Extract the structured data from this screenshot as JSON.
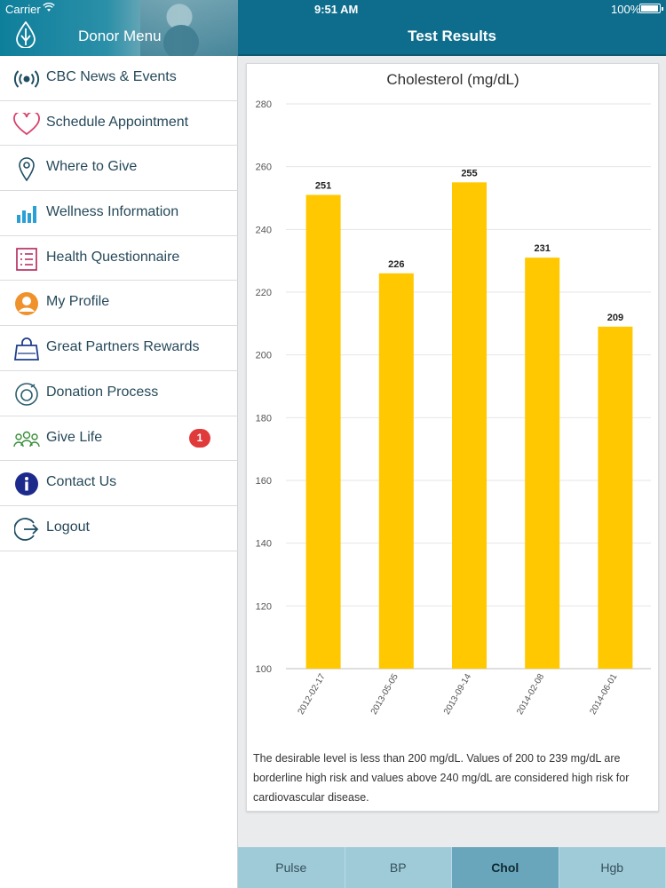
{
  "status_bar": {
    "carrier": "Carrier",
    "time": "9:51 AM",
    "battery": "100%"
  },
  "drawer": {
    "title": "Donor Menu",
    "items": [
      {
        "label": "CBC News & Events",
        "icon": "broadcast-icon",
        "color": "#1f4e63"
      },
      {
        "label": "Schedule Appointment",
        "icon": "heart-outline-icon",
        "color": "#d6426a"
      },
      {
        "label": "Where to Give",
        "icon": "map-pin-icon",
        "color": "#1f4e63"
      },
      {
        "label": "Wellness Information",
        "icon": "bar-chart-icon",
        "color": "#2a9fd6"
      },
      {
        "label": "Health Questionnaire",
        "icon": "checklist-icon",
        "color": "#b3245a"
      },
      {
        "label": "My Profile",
        "icon": "profile-icon",
        "color": "#f0922b"
      },
      {
        "label": "Great Partners Rewards",
        "icon": "shopping-bag-icon",
        "color": "#1f3f8a"
      },
      {
        "label": "Donation Process",
        "icon": "donation-process-icon",
        "color": "#2e5e6e"
      },
      {
        "label": "Give Life",
        "icon": "people-group-icon",
        "color": "#3a8f3a",
        "badge": "1"
      },
      {
        "label": "Contact Us",
        "icon": "info-icon",
        "color": "#1c2a8c"
      },
      {
        "label": "Logout",
        "icon": "logout-icon",
        "color": "#1f4e63"
      }
    ]
  },
  "main": {
    "title": "Test Results",
    "note": "The desirable level is less than 200 mg/dL. Values of 200 to 239 mg/dL are borderline high risk and values above 240 mg/dL are considered high risk for cardiovascular disease.",
    "tabs": [
      {
        "label": "Pulse",
        "active": false
      },
      {
        "label": "BP",
        "active": false
      },
      {
        "label": "Chol",
        "active": true
      },
      {
        "label": "Hgb",
        "active": false
      }
    ]
  },
  "chart_data": {
    "type": "bar",
    "title": "Cholesterol (mg/dL)",
    "categories": [
      "2012-02-17",
      "2013-05-05",
      "2013-09-14",
      "2014-02-08",
      "2014-06-01"
    ],
    "values": [
      251,
      226,
      255,
      231,
      209
    ],
    "ylim": [
      100,
      280
    ],
    "yticks": [
      100,
      120,
      140,
      160,
      180,
      200,
      220,
      240,
      260,
      280
    ],
    "grid": true,
    "bar_color": "#ffc800"
  },
  "colors": {
    "header": "#0e6d8c",
    "tab_active": "#6aa6bb",
    "tab_bar": "#9fcad8"
  }
}
